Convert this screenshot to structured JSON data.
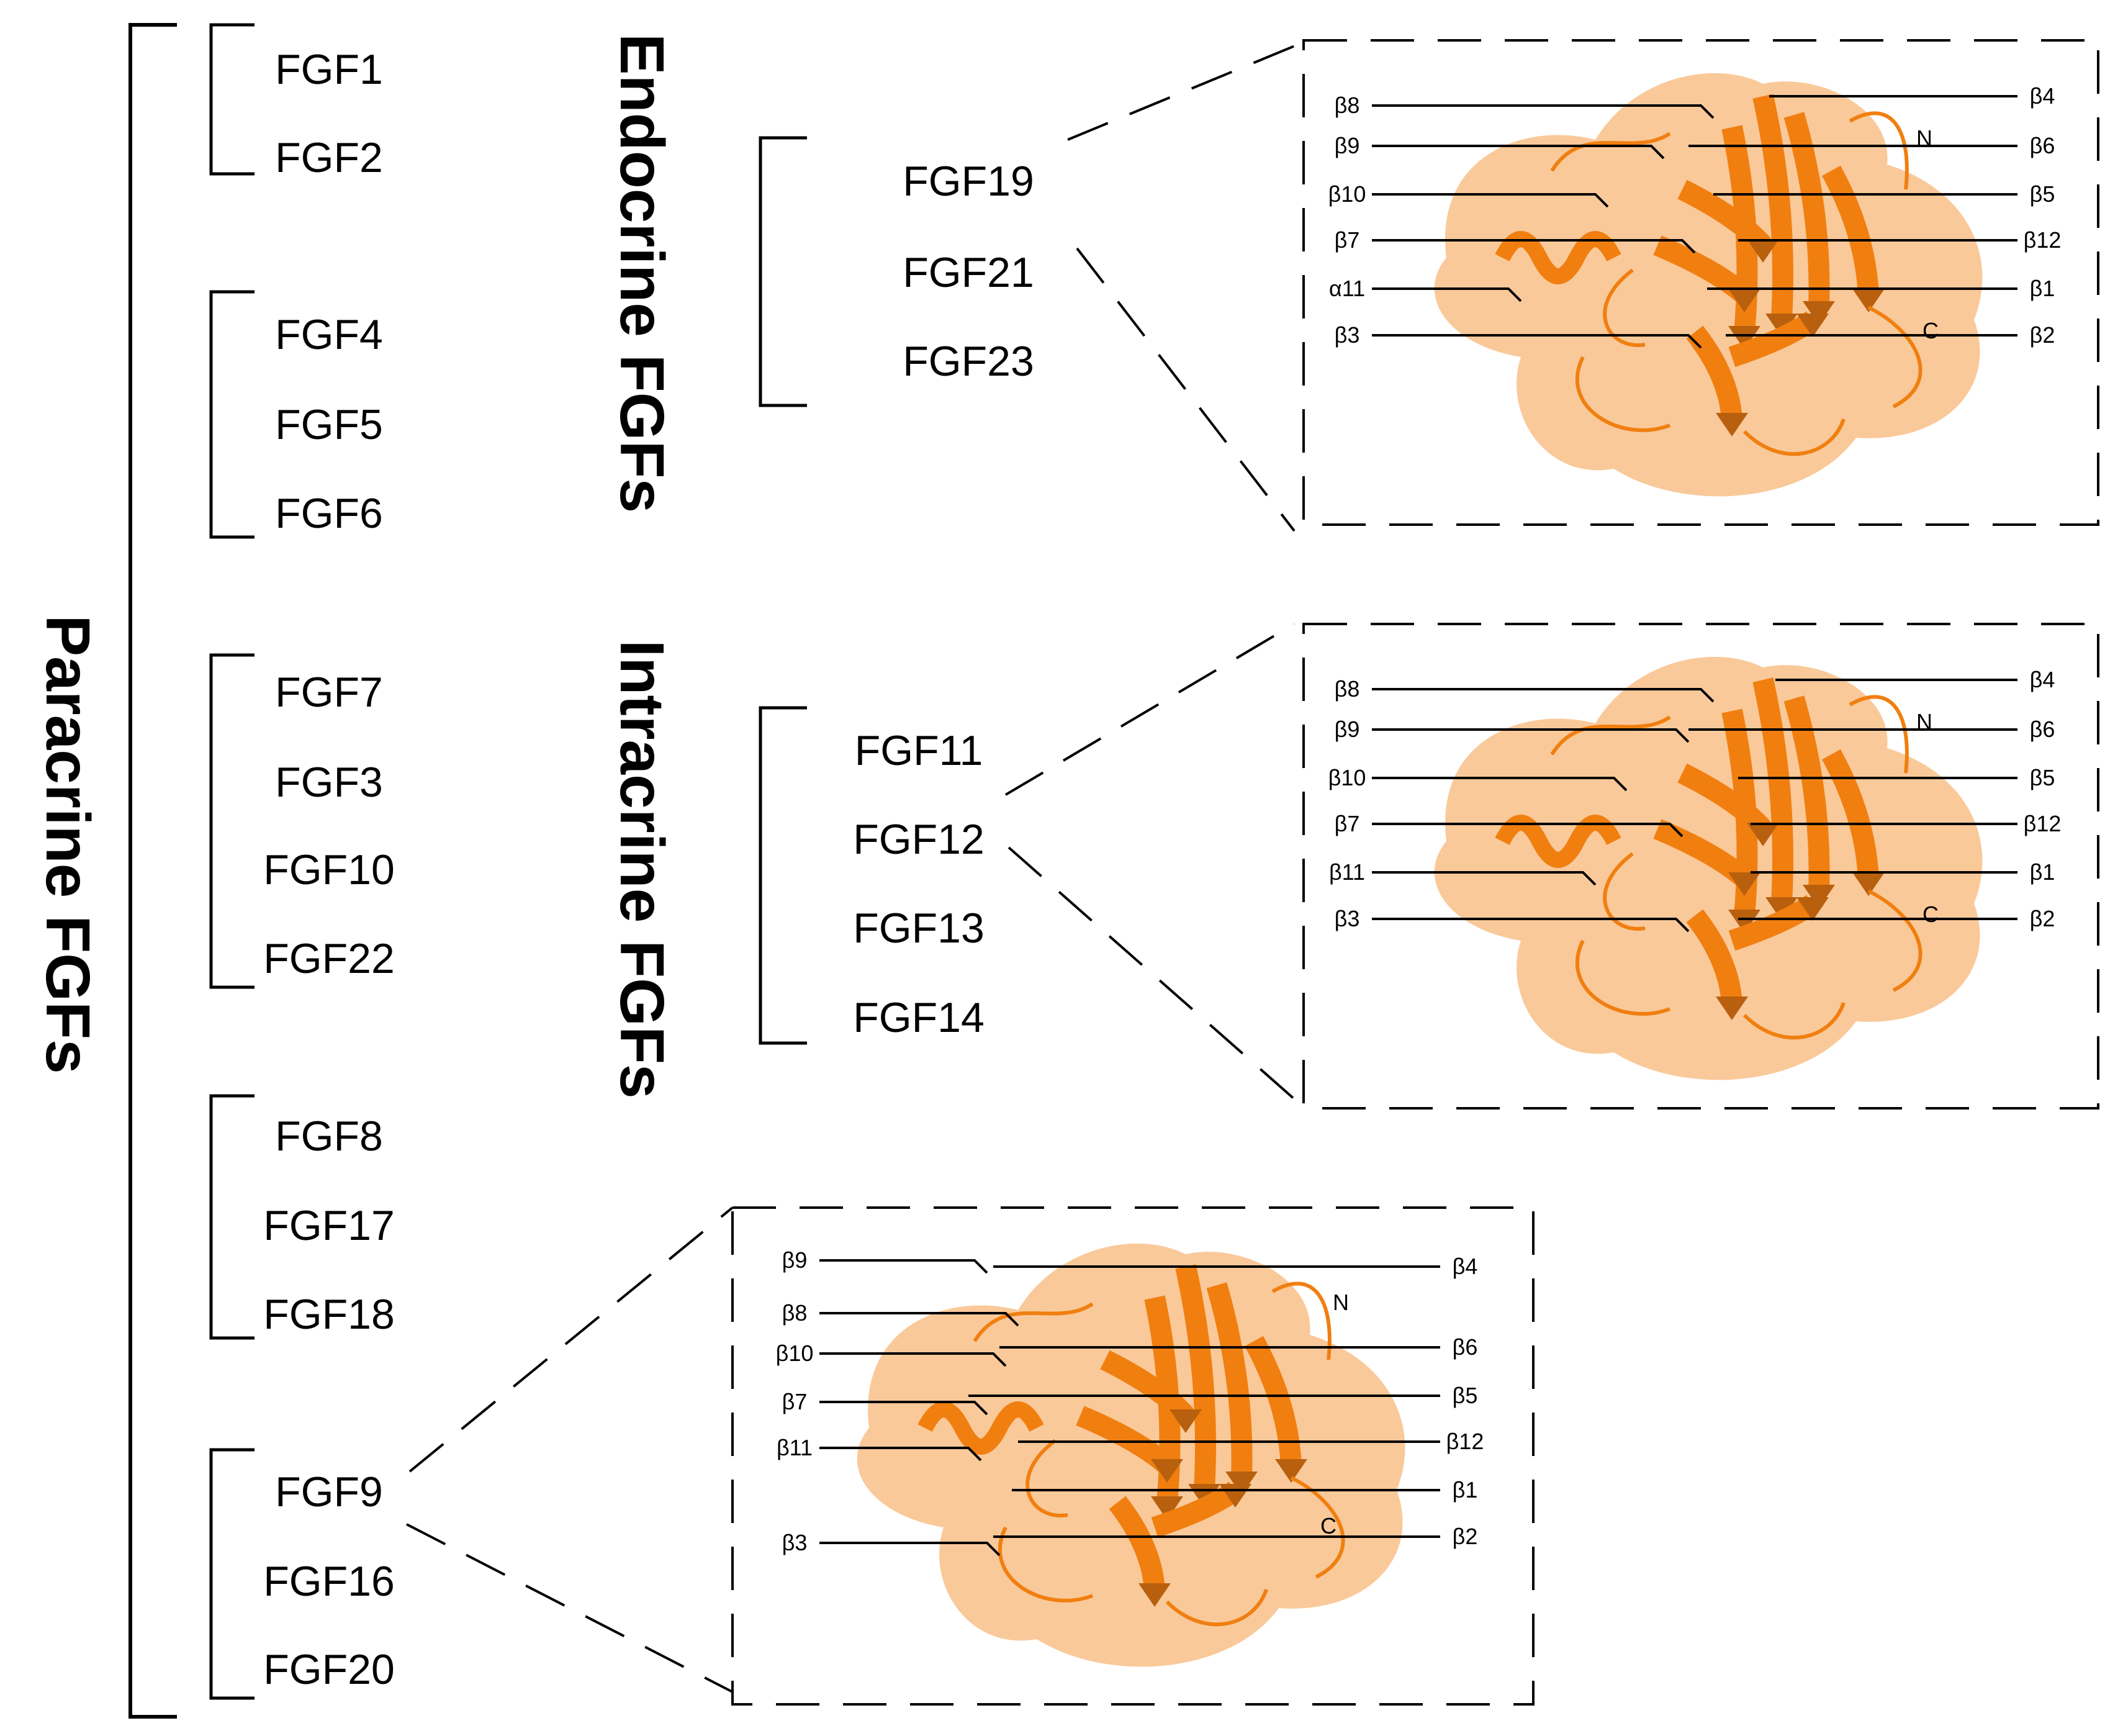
{
  "paracrine": {
    "title": "Paracrine FGFs",
    "groups": [
      [
        "FGF1",
        "FGF2"
      ],
      [
        "FGF4",
        "FGF5",
        "FGF6"
      ],
      [
        "FGF7",
        "FGF3",
        "FGF10",
        "FGF22"
      ],
      [
        "FGF8",
        "FGF17",
        "FGF18"
      ],
      [
        "FGF9",
        "FGF16",
        "FGF20"
      ]
    ]
  },
  "endocrine": {
    "title": "Endocrine FGFs",
    "members": [
      "FGF19",
      "FGF21",
      "FGF23"
    ]
  },
  "intracrine": {
    "title": "Intracrine FGFs",
    "members": [
      "FGF11",
      "FGF12",
      "FGF13",
      "FGF14"
    ]
  },
  "structures": [
    {
      "id": "endocrine-structure",
      "left_labels": [
        "β8",
        "β9",
        "β10",
        "β7",
        "α11",
        "β3"
      ],
      "right_labels": [
        "β4",
        "β6",
        "β5",
        "β12",
        "β1",
        "β2"
      ],
      "terminal_labels": [
        "N",
        "C"
      ]
    },
    {
      "id": "intracrine-structure",
      "left_labels": [
        "β8",
        "β9",
        "β10",
        "β7",
        "β11",
        "β3"
      ],
      "right_labels": [
        "β4",
        "β6",
        "β5",
        "β12",
        "β1",
        "β2"
      ],
      "terminal_labels": [
        "N",
        "C"
      ]
    },
    {
      "id": "paracrine-structure",
      "left_labels": [
        "β9",
        "β8",
        "β10",
        "β7",
        "β11",
        "β3"
      ],
      "right_labels": [
        "β4",
        "β6",
        "β5",
        "β12",
        "β1",
        "β2"
      ],
      "terminal_labels": [
        "N",
        "C"
      ]
    }
  ],
  "colors": {
    "surface": "#f9bf88",
    "ribbon": "#f07f10",
    "ribbon_dark": "#b8600e",
    "line": "#000000"
  }
}
